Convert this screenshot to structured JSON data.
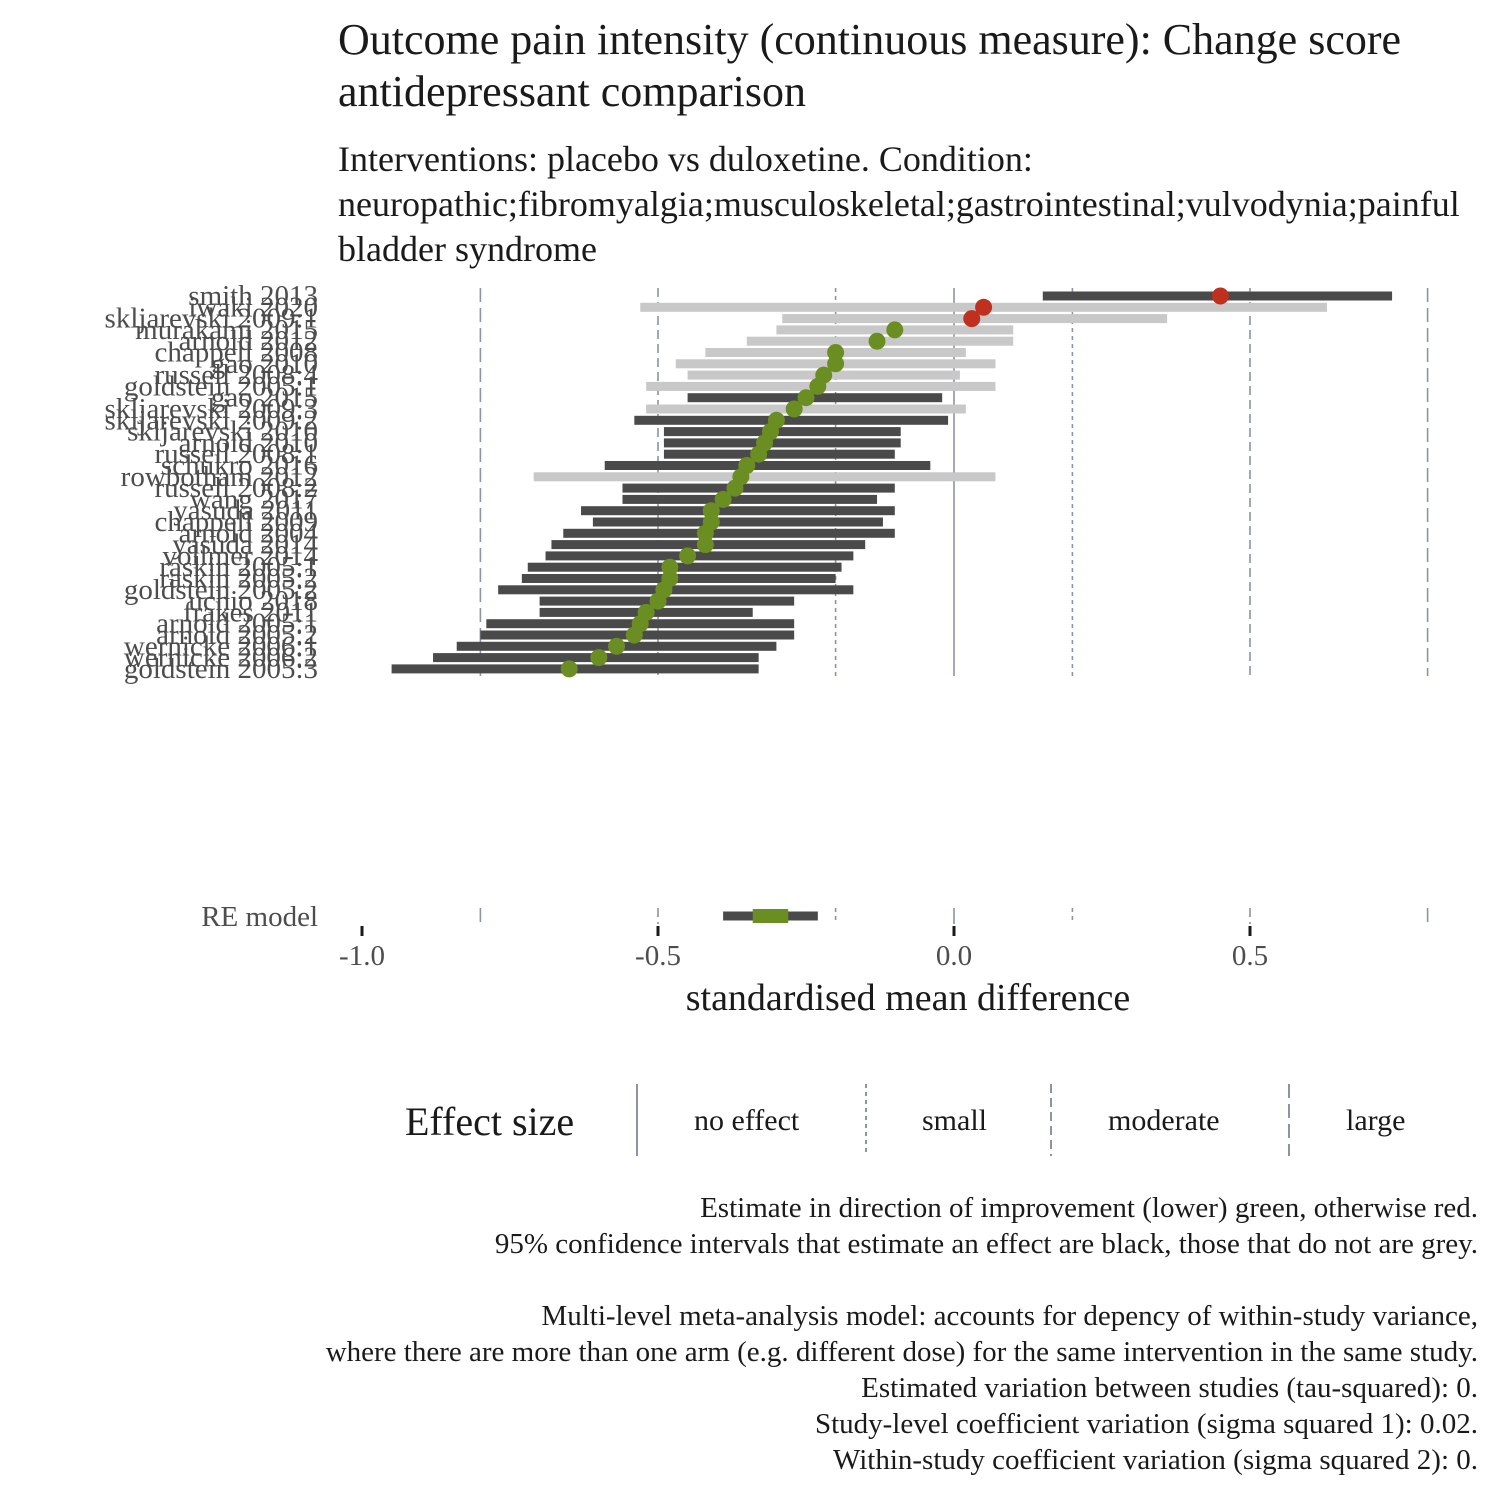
{
  "title": "Outcome pain intensity (continuous measure): Change score antidepressant comparison",
  "subtitle": "Interventions: placebo vs duloxetine. Condition: neuropathic;fibromyalgia;musculoskeletal;gastrointestinal;vulvodynia;painful bladder syndrome",
  "chart_data": {
    "type": "forest",
    "xlabel": "standardised mean difference",
    "xlim": [
      -1.0,
      0.8
    ],
    "x_ticks": [
      -1.0,
      -0.5,
      0.0,
      0.5
    ],
    "x_tick_labels": [
      "-1.0",
      "-0.5",
      "0.0",
      "0.5"
    ],
    "effect_size_thresholds": [
      0.0,
      0.2,
      0.5,
      0.8
    ],
    "colors": {
      "improvement": "#6b8e23",
      "worse": "#c0301f",
      "ci_effect": "#4a4a4a",
      "ci_no_effect": "#c8c8c8",
      "reference_line": "#8a93a8"
    },
    "studies": [
      {
        "label": "smith 2013",
        "est": 0.45,
        "lo": 0.15,
        "hi": 0.74
      },
      {
        "label": "iwaki 2020",
        "est": 0.05,
        "lo": -0.53,
        "hi": 0.63
      },
      {
        "label": "skljarevski 2009:1",
        "est": 0.03,
        "lo": -0.29,
        "hi": 0.36
      },
      {
        "label": "murakami 2015",
        "est": -0.1,
        "lo": -0.3,
        "hi": 0.1
      },
      {
        "label": "arnold 2012",
        "est": -0.13,
        "lo": -0.35,
        "hi": 0.1
      },
      {
        "label": "chappell 2008",
        "est": -0.2,
        "lo": -0.42,
        "hi": 0.02
      },
      {
        "label": "gao 2010",
        "est": -0.2,
        "lo": -0.47,
        "hi": 0.07
      },
      {
        "label": "russell 2008:4",
        "est": -0.22,
        "lo": -0.45,
        "hi": 0.01
      },
      {
        "label": "goldstein 2005:1",
        "est": -0.23,
        "lo": -0.52,
        "hi": 0.07
      },
      {
        "label": "gao 2015",
        "est": -0.25,
        "lo": -0.45,
        "hi": -0.02
      },
      {
        "label": "skljarevski 2009:3",
        "est": -0.27,
        "lo": -0.52,
        "hi": 0.02
      },
      {
        "label": "skljarevski 2009:2",
        "est": -0.3,
        "lo": -0.54,
        "hi": -0.01
      },
      {
        "label": "skljarevski 2010",
        "est": -0.31,
        "lo": -0.49,
        "hi": -0.09
      },
      {
        "label": "arnold 2010",
        "est": -0.32,
        "lo": -0.49,
        "hi": -0.09
      },
      {
        "label": "russell 2008:1",
        "est": -0.33,
        "lo": -0.49,
        "hi": -0.1
      },
      {
        "label": "schukro 2016",
        "est": -0.35,
        "lo": -0.59,
        "hi": -0.04
      },
      {
        "label": "rowbotham 2012",
        "est": -0.36,
        "lo": -0.71,
        "hi": 0.07
      },
      {
        "label": "russell 2008:2",
        "est": -0.37,
        "lo": -0.56,
        "hi": -0.1
      },
      {
        "label": "wang 2017",
        "est": -0.39,
        "lo": -0.56,
        "hi": -0.13
      },
      {
        "label": "yasuda 2011",
        "est": -0.41,
        "lo": -0.63,
        "hi": -0.1
      },
      {
        "label": "chappell 2009",
        "est": -0.41,
        "lo": -0.61,
        "hi": -0.12
      },
      {
        "label": "arnold 2004",
        "est": -0.42,
        "lo": -0.66,
        "hi": -0.1
      },
      {
        "label": "yasuda 2014",
        "est": -0.42,
        "lo": -0.68,
        "hi": -0.15
      },
      {
        "label": "vollmer 2014",
        "est": -0.45,
        "lo": -0.69,
        "hi": -0.17
      },
      {
        "label": "raskin 2005:1",
        "est": -0.48,
        "lo": -0.72,
        "hi": -0.19
      },
      {
        "label": "raskin 2005:2",
        "est": -0.48,
        "lo": -0.73,
        "hi": -0.2
      },
      {
        "label": "goldstein 2005:2",
        "est": -0.49,
        "lo": -0.77,
        "hi": -0.17
      },
      {
        "label": "uchio 2018",
        "est": -0.5,
        "lo": -0.7,
        "hi": -0.27
      },
      {
        "label": "frakes 2011",
        "est": -0.52,
        "lo": -0.7,
        "hi": -0.34
      },
      {
        "label": "arnold 2005:1",
        "est": -0.53,
        "lo": -0.79,
        "hi": -0.27
      },
      {
        "label": "arnold 2005:2",
        "est": -0.54,
        "lo": -0.8,
        "hi": -0.27
      },
      {
        "label": "wernicke 2006:1",
        "est": -0.57,
        "lo": -0.84,
        "hi": -0.3
      },
      {
        "label": "wernicke 2006:2",
        "est": -0.6,
        "lo": -0.88,
        "hi": -0.33
      },
      {
        "label": "goldstein 2005:3",
        "est": -0.65,
        "lo": -0.95,
        "hi": -0.33
      }
    ],
    "summary": {
      "label": "RE model",
      "est": -0.31,
      "lo": -0.39,
      "hi": -0.23,
      "inner_lo": -0.34,
      "inner_hi": -0.28
    }
  },
  "legend": {
    "title": "Effect size",
    "items": [
      "no effect",
      "small",
      "moderate",
      "large"
    ]
  },
  "caption": {
    "lines": [
      "Estimate in direction of improvement (lower) green, otherwise red.",
      "95% confidence intervals that estimate an effect are black, those that do not are grey.",
      "",
      "Multi-level meta-analysis model: accounts for depency of within-study variance,",
      "where there are more than one arm (e.g. different dose) for the same intervention in the same study.",
      "Estimated variation between studies (tau-squared): 0.",
      "Study-level coefficient variation (sigma squared 1): 0.02.",
      "Within-study coefficient variation (sigma squared 2): 0."
    ]
  }
}
